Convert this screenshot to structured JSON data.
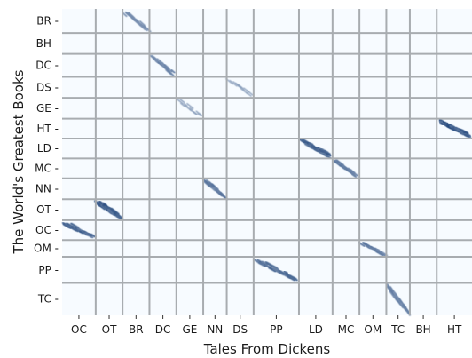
{
  "chart_data": {
    "type": "heatmap",
    "title": "",
    "xlabel": "Tales From Dickens",
    "ylabel": "The World's Greatest Books",
    "x_categories": [
      "OC",
      "OT",
      "BR",
      "DC",
      "GE",
      "NN",
      "DS",
      "PP",
      "LD",
      "MC",
      "OM",
      "TC",
      "BH",
      "HT"
    ],
    "x_block_sizes": [
      1.0,
      0.8,
      0.8,
      0.8,
      0.8,
      0.7,
      0.8,
      1.35,
      1.0,
      0.8,
      0.8,
      0.7,
      0.8,
      1.05
    ],
    "y_categories": [
      "BR",
      "BH",
      "DC",
      "DS",
      "GE",
      "HT",
      "LD",
      "MC",
      "NN",
      "OT",
      "OC",
      "OM",
      "PP",
      "TC"
    ],
    "y_block_sizes": [
      1.15,
      1.0,
      1.1,
      1.0,
      1.0,
      0.95,
      0.95,
      0.95,
      1.0,
      1.0,
      0.95,
      0.8,
      1.25,
      1.55
    ],
    "grid": true,
    "colorscale": [
      "#f7fbff",
      "#08306b"
    ],
    "high_similarity_blocks": [
      {
        "x": "BR",
        "y": "BR",
        "intensity": 0.45
      },
      {
        "x": "DC",
        "y": "DC",
        "intensity": 0.5
      },
      {
        "x": "DS",
        "y": "DS",
        "intensity": 0.2
      },
      {
        "x": "GE",
        "y": "GE",
        "intensity": 0.25
      },
      {
        "x": "HT",
        "y": "HT",
        "intensity": 0.95
      },
      {
        "x": "LD",
        "y": "LD",
        "intensity": 0.85
      },
      {
        "x": "MC",
        "y": "MC",
        "intensity": 0.6
      },
      {
        "x": "NN",
        "y": "NN",
        "intensity": 0.6
      },
      {
        "x": "OT",
        "y": "OT",
        "intensity": 0.9
      },
      {
        "x": "OC",
        "y": "OC",
        "intensity": 0.8
      },
      {
        "x": "OM",
        "y": "OM",
        "intensity": 0.6
      },
      {
        "x": "PP",
        "y": "PP",
        "intensity": 0.75
      },
      {
        "x": "TC",
        "y": "TC",
        "intensity": 0.5
      }
    ]
  }
}
